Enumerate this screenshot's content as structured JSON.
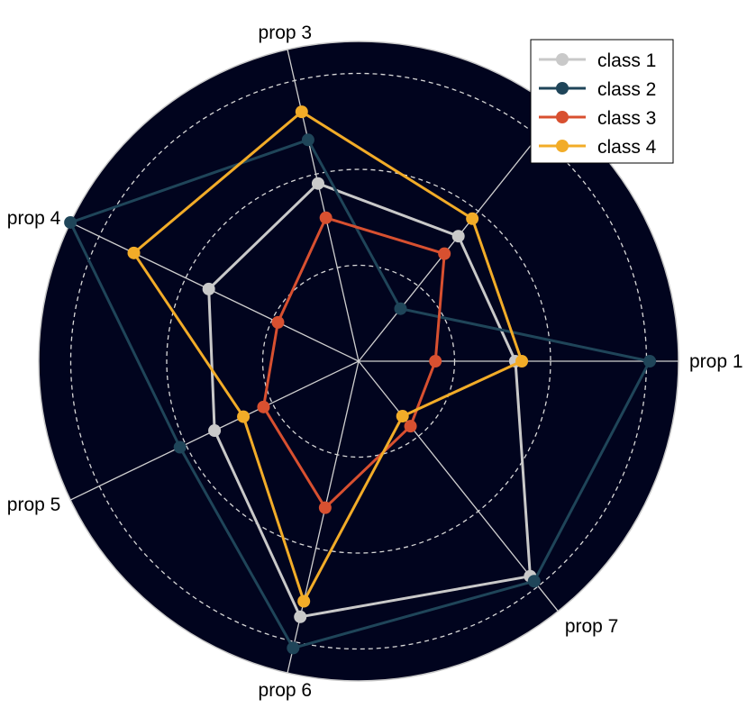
{
  "chart_data": {
    "type": "radar",
    "axes": [
      "prop 1",
      "",
      "prop 3",
      "prop 4",
      "prop 5",
      "prop 6",
      "prop 7"
    ],
    "rlim": [
      0,
      1
    ],
    "rgrid": [
      0.3,
      0.6,
      0.9
    ],
    "grid": true,
    "legend_position": "top-right",
    "background": "#01041e",
    "series": [
      {
        "name": "class 1",
        "color": "#c9c9c9",
        "values": [
          0.49,
          0.5,
          0.57,
          0.52,
          0.5,
          0.82,
          0.86
        ]
      },
      {
        "name": "class 2",
        "color": "#1f4559",
        "values": [
          0.91,
          0.21,
          0.71,
          1.0,
          0.62,
          0.92,
          0.88
        ]
      },
      {
        "name": "class 3",
        "color": "#d85030",
        "values": [
          0.24,
          0.43,
          0.46,
          0.28,
          0.33,
          0.47,
          0.26
        ]
      },
      {
        "name": "class 4",
        "color": "#f2ac28",
        "values": [
          0.51,
          0.57,
          0.8,
          0.78,
          0.4,
          0.77,
          0.22
        ]
      }
    ]
  }
}
